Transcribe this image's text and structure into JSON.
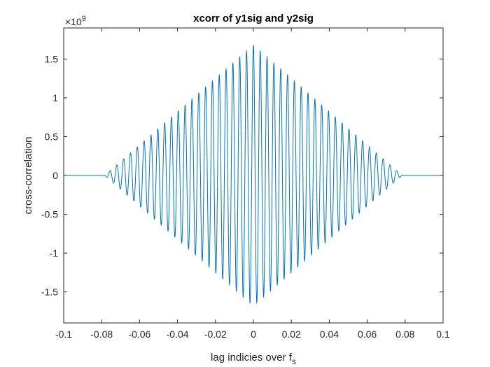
{
  "chart_data": {
    "type": "line",
    "title": "xcorr of y1sig and y2sig",
    "xlabel": "lag indicies over f",
    "xlabel_subscript": "s",
    "ylabel": "cross-correlation",
    "exponent_label": "×10",
    "exponent_power": "9",
    "xlim": [
      -0.1,
      0.1
    ],
    "ylim": [
      -1.9,
      1.9
    ],
    "xticks": [
      -0.1,
      -0.08,
      -0.06,
      -0.04,
      -0.02,
      0,
      0.02,
      0.04,
      0.06,
      0.08,
      0.1
    ],
    "xtick_labels": [
      "-0.1",
      "-0.08",
      "-0.06",
      "-0.04",
      "-0.02",
      "0",
      "0.02",
      "0.04",
      "0.06",
      "0.08",
      "0.1"
    ],
    "yticks": [
      -1.5,
      -1,
      -0.5,
      0,
      0.5,
      1,
      1.5
    ],
    "ytick_labels": [
      "-1.5",
      "-1",
      "-0.5",
      "0",
      "0.5",
      "1",
      "1.5"
    ],
    "y_scale_factor": 1000000000,
    "grid": false,
    "series": [
      {
        "color": "#0072bd",
        "envelope": {
          "x": [
            -0.1,
            -0.0785,
            -0.077,
            0,
            0.077,
            0.0785,
            0.1
          ],
          "y": [
            0,
            0,
            0.03,
            1.68,
            0.03,
            0,
            0
          ]
        },
        "oscillation_period": 0.0036
      }
    ]
  }
}
